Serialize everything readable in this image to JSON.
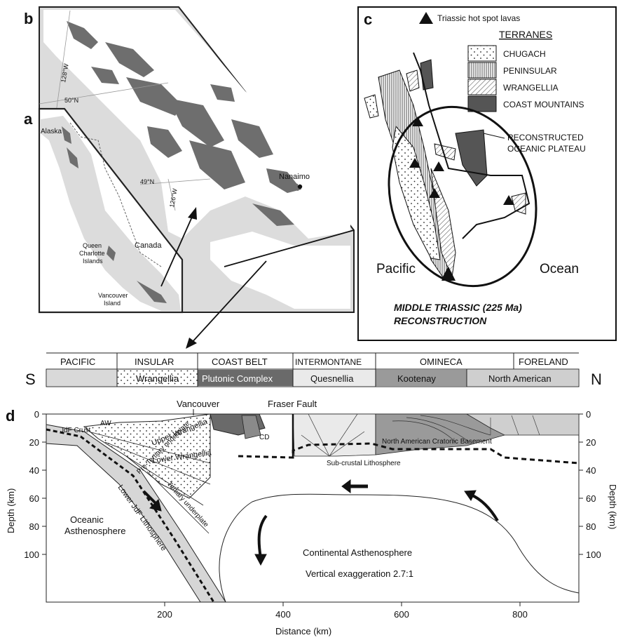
{
  "panels": {
    "a": "a",
    "b": "b",
    "c": "c",
    "d": "d"
  },
  "map_a": {
    "labels": {
      "alaska": "Alaska",
      "canada": "Canada",
      "qci_1": "Queen",
      "qci_2": "Charlotte",
      "qci_3": "Islands",
      "vi_1": "Vancouver",
      "vi_2": "Island"
    }
  },
  "map_b": {
    "labels": {
      "lon128": "128°W",
      "lat50": "50°N",
      "lat49": "49°N",
      "lon126": "126°W",
      "nanaimo": "Nanaimo"
    }
  },
  "map_c": {
    "hotspot_legend": "Triassic hot spot lavas",
    "terranes_title": "TERRANES",
    "terranes": [
      "CHUGACH",
      "PENINSULAR",
      "WRANGELLIA",
      "COAST MOUNTAINS"
    ],
    "plateau_1": "RECONSTRUCTED",
    "plateau_2": "OCEANIC PLATEAU",
    "pacific": "Pacific",
    "ocean": "Ocean",
    "caption_1": "MIDDLE TRIASSIC (225 Ma)",
    "caption_2": "RECONSTRUCTION"
  },
  "belts": {
    "south": "S",
    "north": "N",
    "names": [
      "PACIFIC",
      "INSULAR",
      "COAST BELT",
      "INTERMONTANE",
      "OMINECA",
      "FORELAND"
    ],
    "units": [
      "",
      "Wrangellia",
      "Plutonic Complex",
      "Quesnellia",
      "Kootenay",
      "North American"
    ]
  },
  "section": {
    "top_labels": {
      "vancouver": "Vancouver",
      "fraser": "Fraser Fault"
    },
    "units": {
      "jdf_crust": "JdF Crust",
      "aw": "AW",
      "upper_wr": "Upper Wrangellia",
      "lower_wr": "Lower Wrangellia",
      "cd": "CD",
      "pre_tert": "Pre-Tertiary underplate",
      "tert": "Tertiary underplate",
      "lower_jdf": "Lower JdF Lithosphere",
      "ocean_asth_1": "Oceanic",
      "ocean_asth_2": "Asthenosphere",
      "na_basement": "North American  Cratonic  Basement",
      "subcrustal": "Sub-crustal Lithosphere",
      "cont_asth": "Continental Asthenosphere",
      "vert_exag": "Vertical exaggeration 2.7:1"
    },
    "xlabel": "Distance (km)",
    "ylabel_left": "Depth (km)",
    "ylabel_right": "Depth (km)",
    "xticks": [
      "200",
      "400",
      "600",
      "800"
    ],
    "yticks": [
      "0",
      "20",
      "40",
      "60",
      "80",
      "100"
    ]
  },
  "colors": {
    "land": "#ffffff",
    "sea": "#dcdcdc",
    "wrangellia_dark": "#6e6e6e",
    "plutonic": "#6a6a6a",
    "kootenay": "#9a9a9a",
    "north_american": "#cfcfcf",
    "pacific_belt": "#d9d9d9"
  }
}
